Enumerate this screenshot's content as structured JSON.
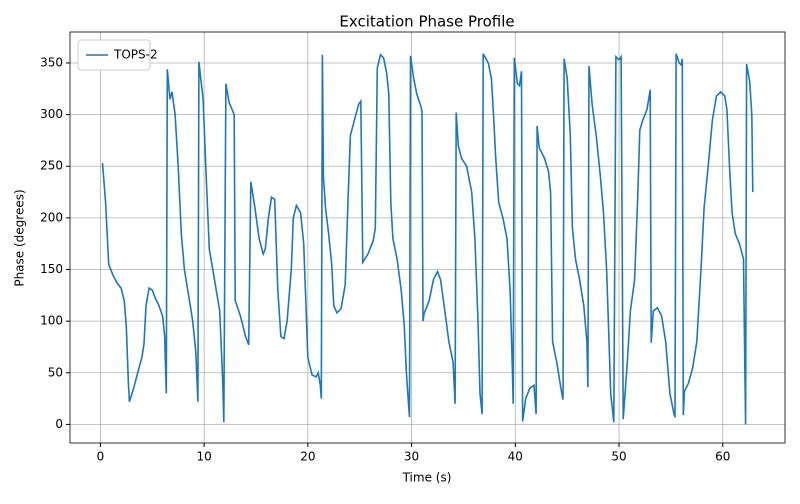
{
  "chart_data": {
    "type": "line",
    "title": "Excitation Phase Profile",
    "xlabel": "Time (s)",
    "ylabel": "Phase (degrees)",
    "x": [
      0.2,
      0.5,
      0.8,
      1.2,
      1.6,
      2.0,
      2.3,
      2.5,
      2.7,
      2.8,
      3.2,
      3.6,
      4.0,
      4.2,
      4.4,
      4.7,
      5.0,
      5.3,
      5.6,
      6.0,
      6.2,
      6.35,
      6.45,
      6.7,
      6.9,
      7.2,
      7.5,
      7.8,
      8.1,
      8.5,
      8.9,
      9.2,
      9.4,
      9.5,
      9.9,
      10.2,
      10.5,
      11.0,
      11.5,
      11.8,
      11.9,
      12.1,
      12.4,
      12.9,
      13.0,
      13.5,
      14.0,
      14.3,
      14.5,
      14.9,
      15.3,
      15.7,
      15.9,
      16.2,
      16.5,
      16.8,
      17.1,
      17.4,
      17.7,
      18.0,
      18.4,
      18.6,
      18.9,
      19.3,
      19.6,
      19.8,
      20.0,
      20.4,
      20.8,
      21.0,
      21.2,
      21.3,
      21.4,
      21.5,
      21.7,
      22.0,
      22.3,
      22.5,
      22.8,
      23.2,
      23.6,
      23.9,
      24.1,
      24.5,
      24.9,
      25.1,
      25.3,
      25.8,
      26.3,
      26.5,
      26.7,
      27.0,
      27.3,
      27.6,
      27.8,
      28.0,
      28.2,
      28.6,
      29.0,
      29.3,
      29.5,
      29.7,
      29.8,
      29.9,
      30.2,
      30.5,
      30.9,
      31.0,
      31.1,
      31.2,
      31.7,
      32.1,
      32.5,
      32.8,
      33.2,
      33.6,
      34.0,
      34.2,
      34.3,
      34.5,
      34.8,
      35.3,
      35.8,
      36.1,
      36.4,
      36.6,
      36.8,
      36.9,
      37.4,
      37.7,
      37.9,
      38.1,
      38.4,
      38.8,
      39.2,
      39.5,
      39.7,
      39.8,
      39.9,
      40.2,
      40.4,
      40.6,
      40.7,
      41.0,
      41.4,
      41.8,
      42.0,
      42.1,
      42.3,
      42.8,
      43.2,
      43.4,
      43.6,
      44.0,
      44.4,
      44.6,
      44.7,
      45.0,
      45.3,
      45.5,
      45.8,
      46.2,
      46.6,
      46.9,
      47.0,
      47.1,
      47.4,
      47.8,
      48.2,
      48.5,
      48.8,
      49.0,
      49.2,
      49.5,
      49.7,
      50.0,
      50.2,
      50.4,
      50.8,
      51.1,
      51.5,
      51.8,
      52.0,
      52.3,
      52.7,
      53.0,
      53.1,
      53.3,
      53.7,
      54.1,
      54.5,
      54.9,
      55.3,
      55.4,
      55.5,
      55.8,
      56.0,
      56.1,
      56.2,
      56.3,
      56.7,
      57.1,
      57.5,
      57.9,
      58.2,
      58.6,
      59.0,
      59.4,
      59.8,
      60.2,
      60.4,
      60.7,
      60.9,
      61.2,
      61.6,
      62.0,
      62.1,
      62.2,
      62.3,
      62.6,
      62.8,
      62.9
    ],
    "series": [
      {
        "name": "TOPS-2",
        "color": "#1f77b4",
        "values": [
          253,
          215,
          155,
          145,
          137,
          132,
          120,
          95,
          40,
          22,
          35,
          50,
          65,
          78,
          115,
          132,
          130,
          122,
          116,
          105,
          85,
          30,
          344,
          315,
          322,
          300,
          250,
          185,
          150,
          125,
          100,
          70,
          22,
          351,
          315,
          240,
          170,
          140,
          110,
          40,
          2,
          330,
          312,
          300,
          120,
          105,
          85,
          77,
          235,
          210,
          180,
          165,
          170,
          200,
          220,
          218,
          130,
          85,
          83,
          100,
          150,
          200,
          212,
          205,
          175,
          120,
          65,
          48,
          46,
          50,
          38,
          25,
          358,
          240,
          210,
          185,
          155,
          115,
          108,
          112,
          135,
          225,
          280,
          295,
          310,
          313,
          157,
          165,
          178,
          190,
          345,
          358,
          355,
          340,
          320,
          215,
          180,
          160,
          130,
          95,
          50,
          20,
          7,
          357,
          335,
          320,
          308,
          303,
          100,
          107,
          120,
          140,
          148,
          140,
          110,
          80,
          60,
          20,
          302,
          270,
          258,
          250,
          225,
          180,
          100,
          30,
          10,
          359,
          350,
          335,
          300,
          260,
          215,
          200,
          180,
          130,
          60,
          20,
          355,
          330,
          328,
          342,
          3,
          25,
          35,
          38,
          10,
          289,
          268,
          258,
          245,
          225,
          80,
          60,
          35,
          24,
          354,
          335,
          280,
          190,
          160,
          140,
          115,
          80,
          36,
          347,
          310,
          280,
          240,
          205,
          150,
          90,
          30,
          2,
          356,
          353,
          356,
          5,
          60,
          110,
          140,
          220,
          285,
          295,
          305,
          324,
          79,
          110,
          113,
          105,
          80,
          30,
          10,
          7,
          359,
          350,
          348,
          354,
          9,
          32,
          40,
          55,
          80,
          150,
          210,
          250,
          295,
          318,
          322,
          318,
          305,
          240,
          205,
          185,
          175,
          160,
          80,
          0,
          349,
          332,
          300,
          225
        ]
      }
    ],
    "xlim": [
      -2.93,
      66.0
    ],
    "ylim": [
      -18,
      380
    ],
    "xticks": [
      0,
      10,
      20,
      30,
      40,
      50,
      60
    ],
    "yticks": [
      0,
      50,
      100,
      150,
      200,
      250,
      300,
      350
    ],
    "grid": true,
    "legend": "upper left"
  }
}
